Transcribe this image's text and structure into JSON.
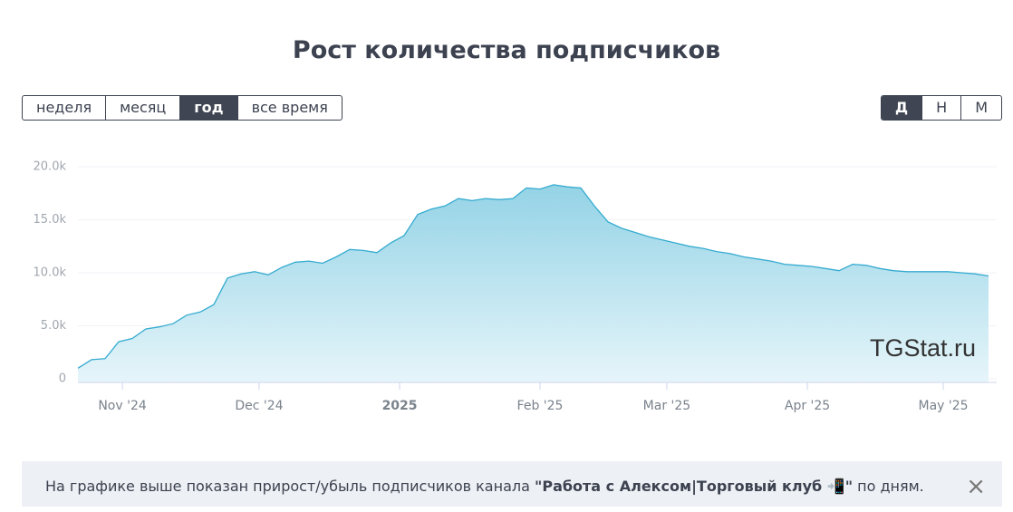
{
  "header": {
    "title": "Рост количества подписчиков"
  },
  "period_buttons": [
    "неделя",
    "месяц",
    "год",
    "все время"
  ],
  "period_active": 2,
  "granularity_buttons": [
    "Д",
    "Н",
    "М"
  ],
  "granularity_active": 0,
  "watermark": "TGStat.ru",
  "chart_data": {
    "type": "area",
    "color": "#35abd0",
    "grid": true,
    "values": [
      1000,
      1800,
      1900,
      3500,
      3800,
      4700,
      4900,
      5200,
      6000,
      6300,
      7000,
      9500,
      9900,
      10100,
      9800,
      10500,
      11000,
      11100,
      10900,
      11500,
      12200,
      12100,
      11900,
      12800,
      13500,
      15500,
      16000,
      16300,
      17000,
      16800,
      17000,
      16900,
      17000,
      18000,
      17900,
      18300,
      18100,
      18000,
      16300,
      14800,
      14200,
      13800,
      13400,
      13100,
      12800,
      12500,
      12300,
      12000,
      11800,
      11500,
      11300,
      11100,
      10800,
      10700,
      10600,
      10400,
      10200,
      10800,
      10700,
      10400,
      10200,
      10100,
      10100,
      10100,
      10100,
      10000,
      9900,
      9700
    ],
    "xlim": [
      0,
      67.6
    ],
    "xticks": [
      {
        "value": 3.27,
        "label": "Nov '24"
      },
      {
        "value": 13.33,
        "label": "Dec '24"
      },
      {
        "value": 23.67,
        "label": "2025"
      },
      {
        "value": 34,
        "label": "Feb '25"
      },
      {
        "value": 43.33,
        "label": "Mar '25"
      },
      {
        "value": 53.67,
        "label": "Apr '25"
      },
      {
        "value": 63.67,
        "label": "May '25"
      }
    ],
    "bold_xtick": 2,
    "ylim": [
      0,
      20000
    ],
    "yticks": [
      0,
      {
        "value": 5000,
        "label": "5.0k"
      },
      {
        "value": 10000,
        "label": "10.0k"
      },
      {
        "value": 15000,
        "label": "15.0k"
      },
      {
        "value": 20000,
        "label": "20.0k"
      }
    ]
  },
  "note": {
    "before": "На графике выше показан прирост/убыль подписчиков канала",
    "channel": "\"Работа с Алексом|Торговый клуб 📲\"",
    "after": "по дням.",
    "close": "×"
  }
}
